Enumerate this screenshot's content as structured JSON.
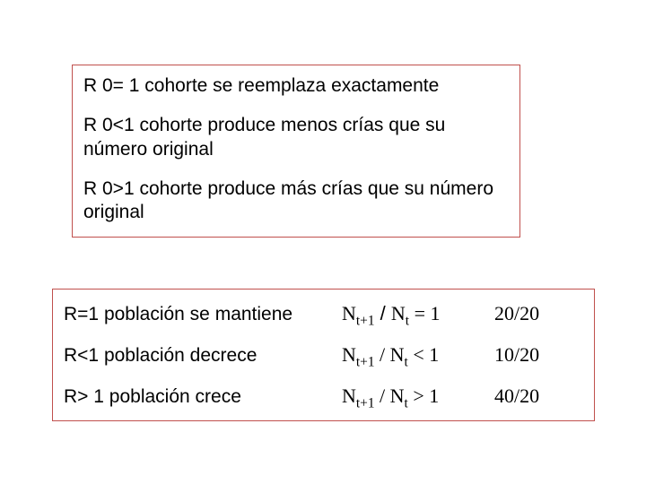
{
  "colors": {
    "border": "#c0504d",
    "background": "#ffffff",
    "text": "#000000"
  },
  "typography": {
    "sans": "Arial",
    "serif": "Times New Roman",
    "body_fontsize_pt": 16,
    "sub_scale": 0.7
  },
  "box1": {
    "paragraphs": [
      "R 0= 1 cohorte se reemplaza exactamente",
      "R 0<1 cohorte produce menos crías que su número original",
      "R 0>1 cohorte produce más crías que su número original"
    ]
  },
  "box2": {
    "rows": [
      {
        "desc": "R=1 población se mantiene",
        "eq_prefix": "N",
        "eq_sub1": "t+1",
        "eq_mid": " / N",
        "eq_sub2": "t",
        "eq_rel": " = 1",
        "example": "20/20"
      },
      {
        "desc": "R<1 población decrece",
        "eq_prefix": "N",
        "eq_sub1": "t+1",
        "eq_mid": " / N",
        "eq_sub2": "t",
        "eq_rel": " < 1",
        "example": "10/20"
      },
      {
        "desc": "R> 1 población crece",
        "eq_prefix": "N",
        "eq_sub1": "t+1",
        "eq_mid": " / N",
        "eq_sub2": "t",
        "eq_rel": " > 1",
        "example": "40/20"
      }
    ]
  }
}
